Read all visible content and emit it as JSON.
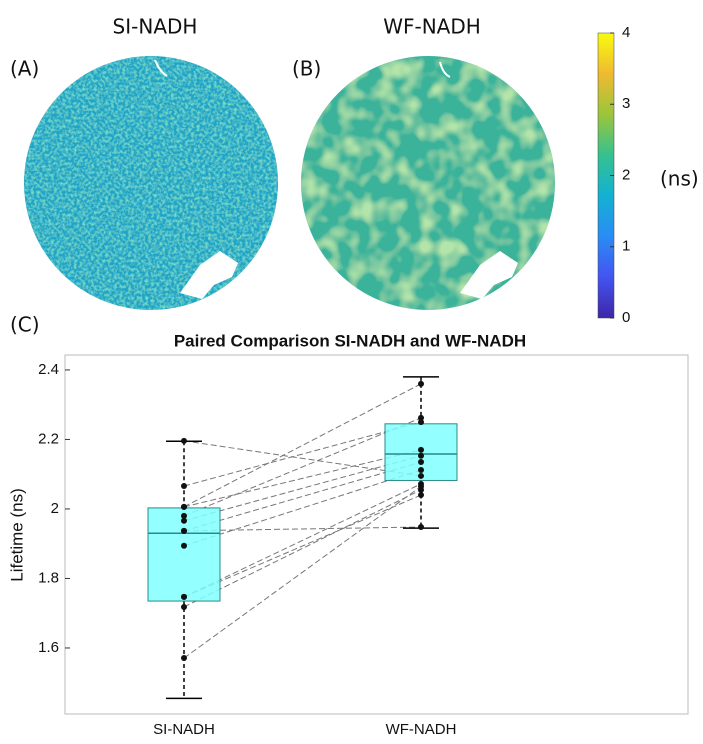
{
  "panels": {
    "a_label": "(A)",
    "a_title": "SI-NADH",
    "b_label": "(B)",
    "b_title": "WF-NADH",
    "c_label": "(C)"
  },
  "colorbar": {
    "lim": [
      0,
      4
    ],
    "ticks": [
      0,
      1,
      2,
      3,
      4
    ],
    "label": "(ns)",
    "colormap": [
      "#3e26a8",
      "#4354f0",
      "#2a8cf5",
      "#13b1d3",
      "#35c18f",
      "#9bc53a",
      "#efba31",
      "#f9fb0e"
    ]
  },
  "chart_data": {
    "type": "box",
    "title": "Paired Comparison SI-NADH and WF-NADH",
    "y_label": "Lifetime (ns)",
    "categories": [
      "SI-NADH",
      "WF-NADH"
    ],
    "boxes": [
      {
        "min": 1.455,
        "q1": 1.735,
        "median": 1.93,
        "q3": 2.003,
        "max": 2.195
      },
      {
        "min": 1.945,
        "q1": 2.082,
        "median": 2.158,
        "q3": 2.245,
        "max": 2.38
      }
    ],
    "points": [
      [
        2.196,
        2.066,
        2.006,
        2.006,
        1.98,
        1.966,
        1.937,
        1.937,
        1.894,
        1.747,
        1.747,
        1.718,
        1.571
      ],
      [
        2.095,
        2.25,
        2.36,
        2.17,
        2.262,
        2.153,
        1.948,
        2.135,
        2.112,
        2.04,
        2.072,
        2.055,
        2.065
      ]
    ],
    "color": "#80ffff",
    "ylim": [
      1.41,
      2.443
    ],
    "yticks": [
      1.6,
      1.8,
      2,
      2.2,
      2.4
    ]
  }
}
